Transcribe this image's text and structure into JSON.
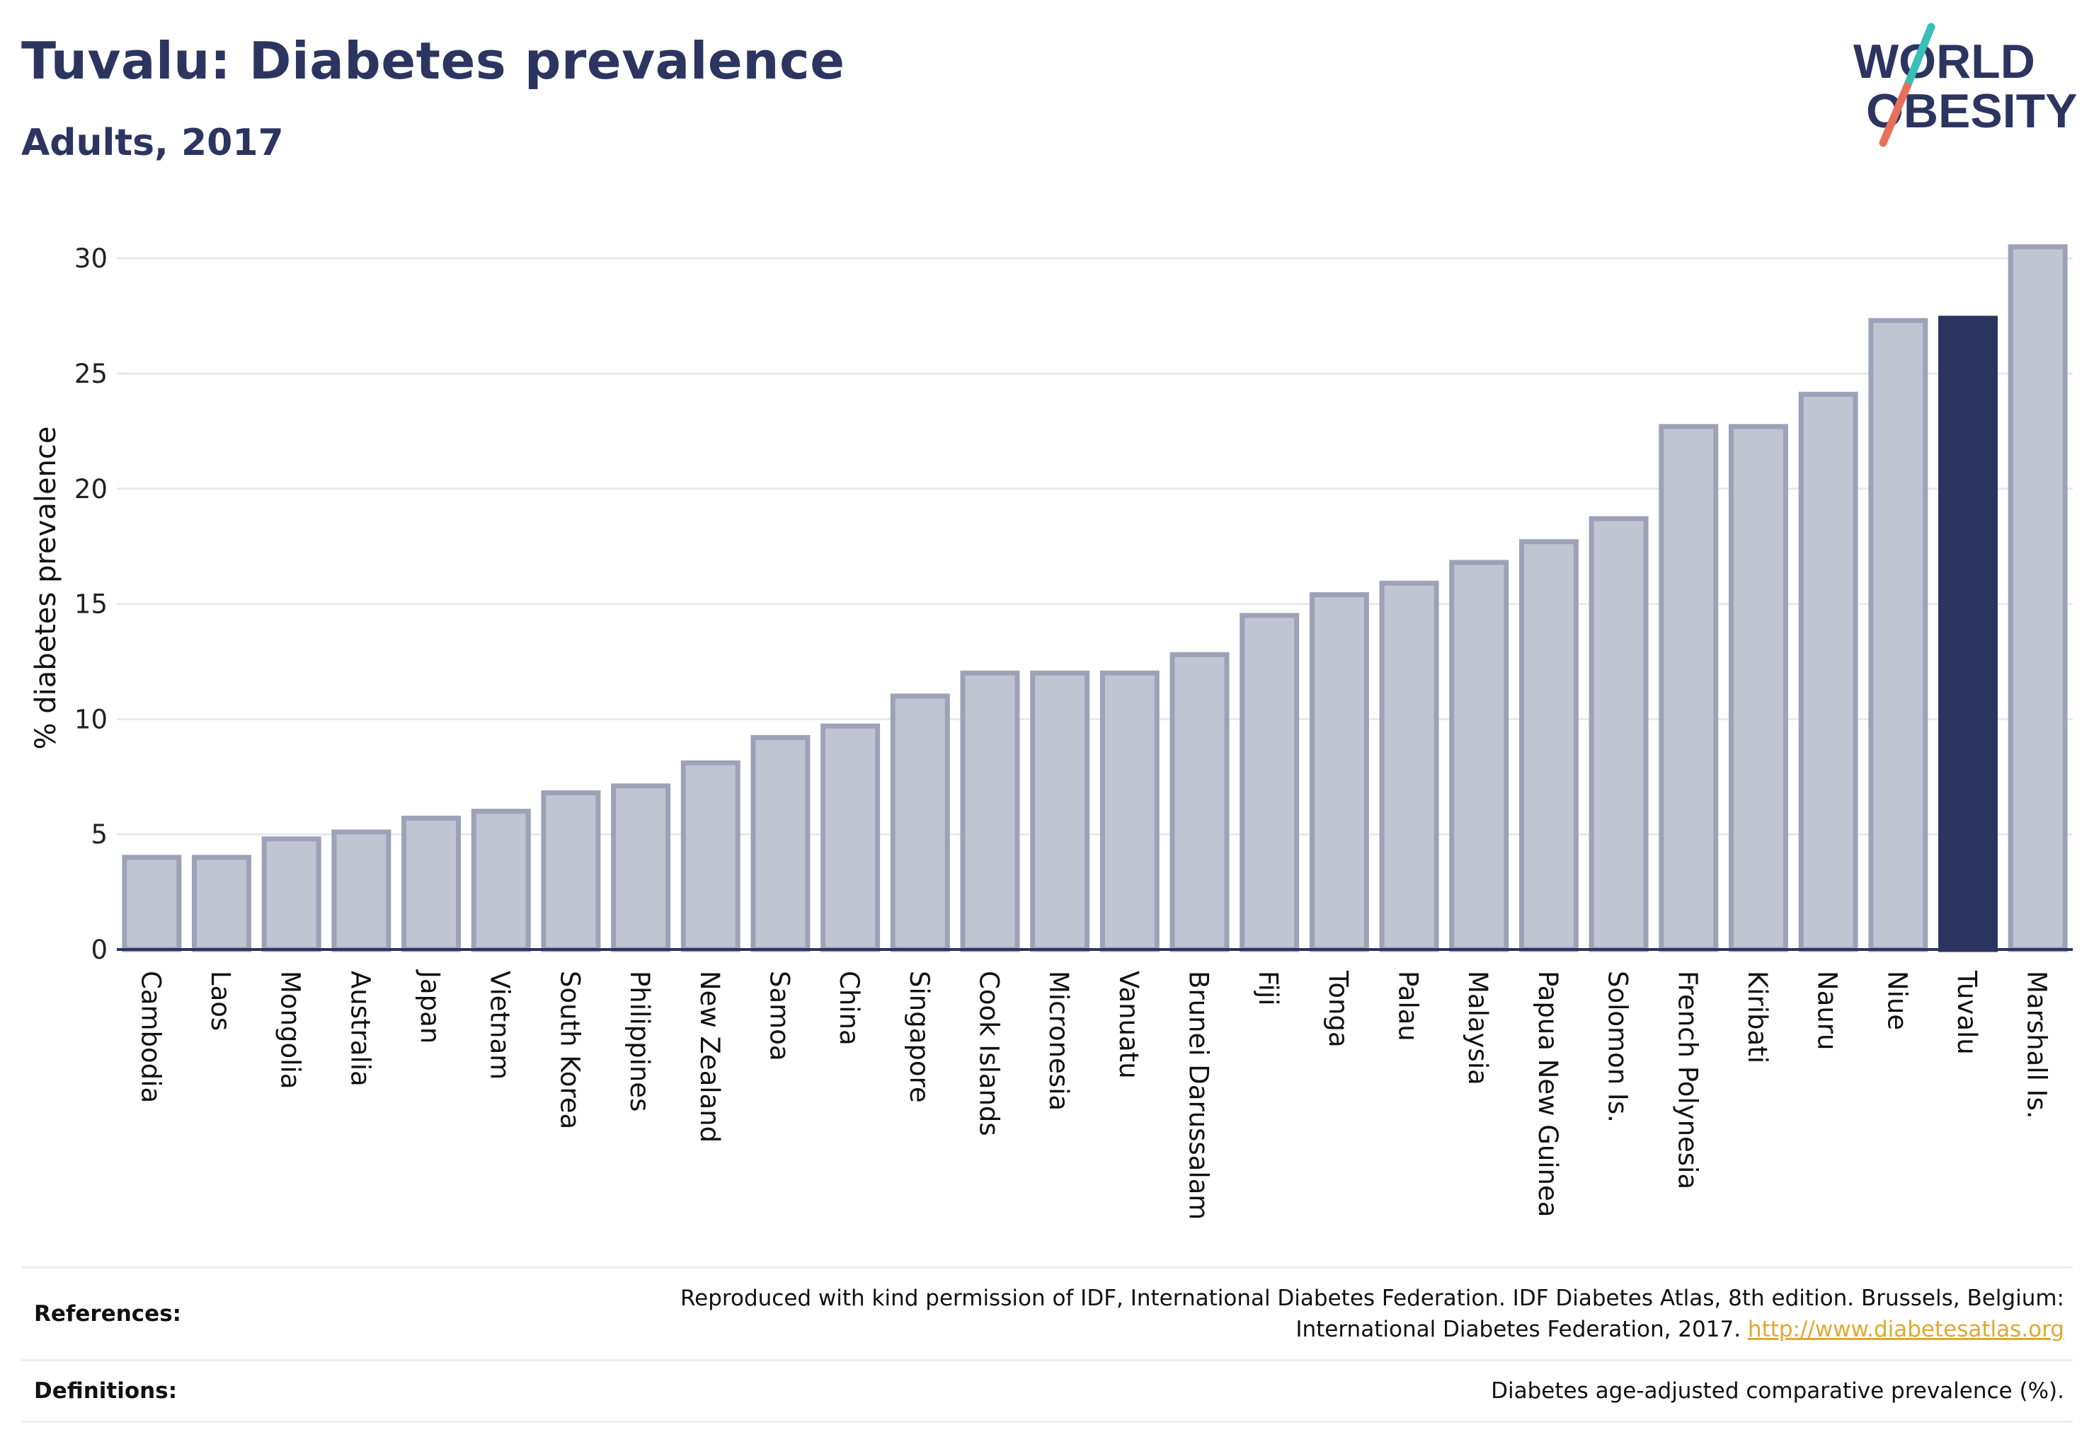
{
  "header": {
    "title": "Tuvalu: Diabetes prevalence",
    "subtitle": "Adults, 2017"
  },
  "logo": {
    "line1": "WORLD",
    "line2": "OBESITY",
    "text_color": "#2c3560",
    "slash_color_top": "#37bfb8",
    "slash_color_bottom": "#e8705a"
  },
  "chart_data": {
    "type": "bar",
    "ylabel": "% diabetes prevalence",
    "ylim": [
      0,
      32
    ],
    "yticks": [
      0,
      5,
      10,
      15,
      20,
      25,
      30
    ],
    "grid": true,
    "highlight": "Tuvalu",
    "highlight_color": "#2c3560",
    "bar_color": "#c1c4d1",
    "bar_edge_color": "#9da2b8",
    "categories": [
      "Cambodia",
      "Laos",
      "Mongolia",
      "Australia",
      "Japan",
      "Vietnam",
      "South Korea",
      "Philippines",
      "New Zealand",
      "Samoa",
      "China",
      "Singapore",
      "Cook Islands",
      "Micronesia",
      "Vanuatu",
      "Brunei Darussalam",
      "Fiji",
      "Tonga",
      "Palau",
      "Malaysia",
      "Papua New Guinea",
      "Solomon Is.",
      "French Polynesia",
      "Kiribati",
      "Nauru",
      "Niue",
      "Tuvalu",
      "Marshall Is."
    ],
    "values": [
      4.0,
      4.0,
      4.8,
      5.1,
      5.7,
      6.0,
      6.8,
      7.1,
      8.1,
      9.2,
      9.7,
      11.0,
      12.0,
      12.0,
      12.0,
      12.8,
      14.5,
      15.4,
      15.9,
      16.8,
      17.7,
      18.7,
      22.7,
      22.7,
      24.1,
      27.3,
      27.4,
      30.5
    ]
  },
  "footer": {
    "references_label": "References:",
    "references_line1": "Reproduced with kind permission of IDF, International Diabetes Federation. IDF Diabetes Atlas, 8th edition. Brussels, Belgium:",
    "references_line2": "International Diabetes Federation, 2017.",
    "references_link": "http://www.diabetesatlas.org",
    "definitions_label": "Definitions:",
    "definitions_text": "Diabetes age-adjusted comparative prevalence (%)."
  }
}
